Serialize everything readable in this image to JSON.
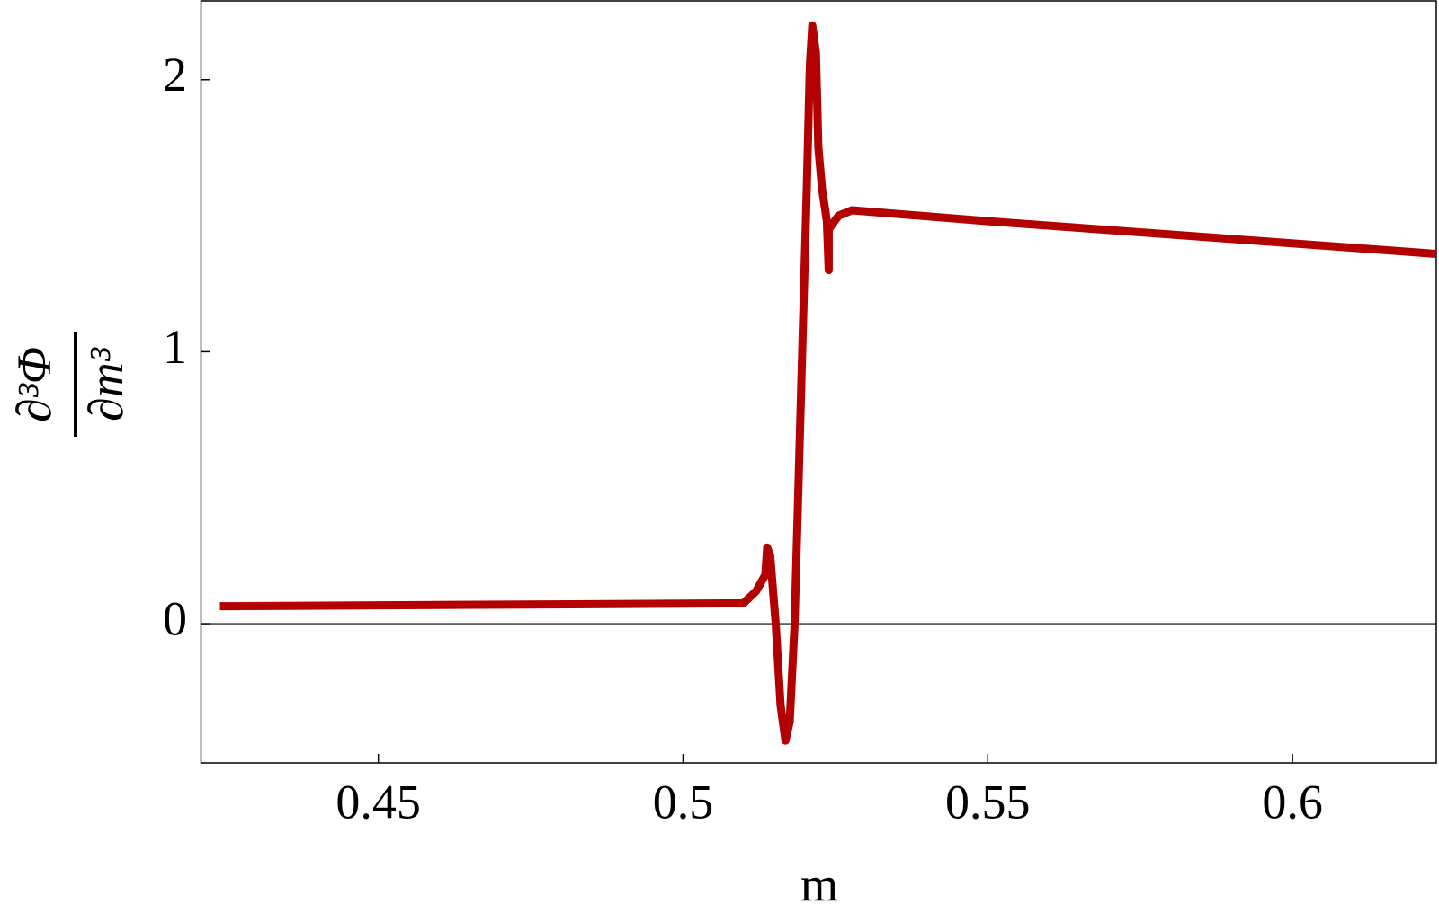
{
  "chart_data": {
    "type": "line",
    "x_label": "m",
    "y_label": {
      "numerator": "∂³Φ",
      "denominator": "∂m³"
    },
    "x": [
      0.424,
      0.5099,
      0.512,
      0.5135,
      0.5138,
      0.5143,
      0.5152,
      0.516,
      0.5168,
      0.5175,
      0.5183,
      0.5193,
      0.5203,
      0.5208,
      0.5212,
      0.5218,
      0.5222,
      0.5228,
      0.5236,
      0.5239,
      0.5239,
      0.5255,
      0.5277,
      0.55,
      0.6236
    ],
    "series": [
      {
        "color": "#b30000",
        "values": [
          0.064,
          0.075,
          0.12,
          0.18,
          0.28,
          0.25,
          0.0,
          -0.3,
          -0.43,
          -0.36,
          0.0,
          0.8,
          1.6,
          2.05,
          2.2,
          2.1,
          1.75,
          1.6,
          1.48,
          1.3,
          1.45,
          1.5,
          1.52,
          1.48,
          1.36
        ]
      }
    ],
    "xlim": [
      0.4209,
      0.6236
    ],
    "ylim": [
      -0.512,
      2.29
    ],
    "xticks": [
      0.45,
      0.5,
      0.55,
      0.6
    ],
    "yticks": [
      0,
      1,
      2
    ],
    "zero_line": true
  }
}
